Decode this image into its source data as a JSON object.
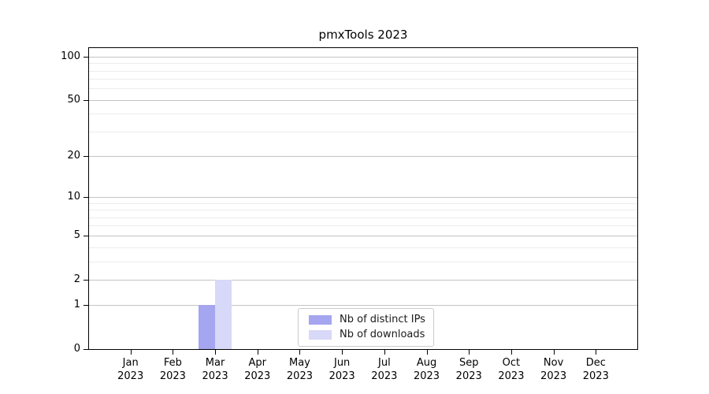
{
  "chart_data": {
    "type": "bar",
    "title": "pmxTools 2023",
    "categories": [
      {
        "month": "Jan",
        "year": "2023"
      },
      {
        "month": "Feb",
        "year": "2023"
      },
      {
        "month": "Mar",
        "year": "2023"
      },
      {
        "month": "Apr",
        "year": "2023"
      },
      {
        "month": "May",
        "year": "2023"
      },
      {
        "month": "Jun",
        "year": "2023"
      },
      {
        "month": "Jul",
        "year": "2023"
      },
      {
        "month": "Aug",
        "year": "2023"
      },
      {
        "month": "Sep",
        "year": "2023"
      },
      {
        "month": "Oct",
        "year": "2023"
      },
      {
        "month": "Nov",
        "year": "2023"
      },
      {
        "month": "Dec",
        "year": "2023"
      }
    ],
    "series": [
      {
        "name": "Nb of distinct IPs",
        "color": "#a5a5f0",
        "values": [
          0,
          0,
          1,
          0,
          0,
          0,
          0,
          0,
          0,
          0,
          0,
          0
        ]
      },
      {
        "name": "Nb of downloads",
        "color": "#d8d8f8",
        "values": [
          0,
          0,
          2,
          0,
          0,
          0,
          0,
          0,
          0,
          0,
          0,
          0
        ]
      }
    ],
    "yticks": [
      0,
      1,
      2,
      5,
      10,
      20,
      50,
      100
    ],
    "minor_grid_values": [
      3,
      4,
      6,
      7,
      8,
      9,
      30,
      40,
      60,
      70,
      80,
      90
    ],
    "scale": "log10(1+x)",
    "ylim": [
      0,
      115
    ],
    "xlabel": "",
    "ylabel": "",
    "grid": true,
    "legend_position": "lower center",
    "colors": {
      "grid_major": "#c4c4c4",
      "grid_minor": "#ececec",
      "axis": "#000000",
      "background": "#ffffff"
    }
  }
}
